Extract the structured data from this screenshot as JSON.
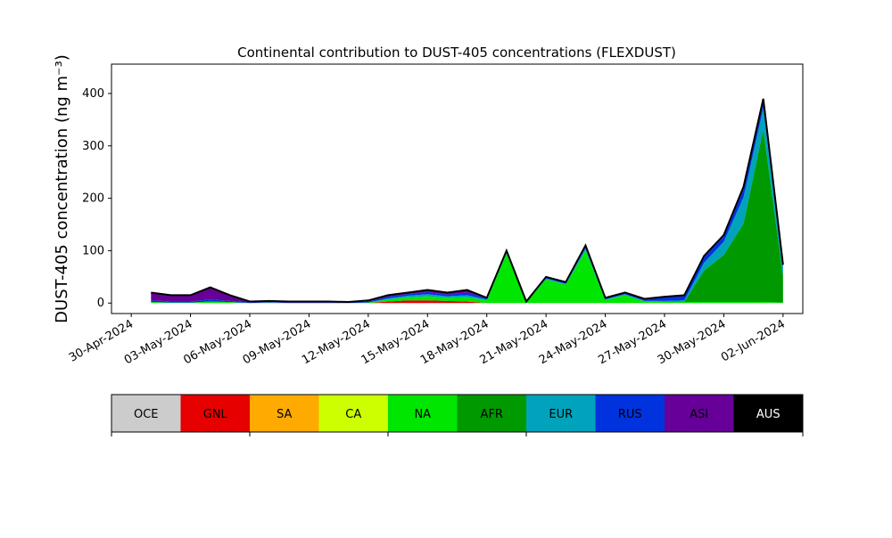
{
  "chart_data": {
    "type": "stacked_area",
    "title": "Continental contribution to DUST-405 concentrations (FLEXDUST)",
    "y_label": "DUST-405 concentration (ng m⁻³)",
    "x": [
      "2024-05-01",
      "2024-05-02",
      "2024-05-03",
      "2024-05-04",
      "2024-05-05",
      "2024-05-06",
      "2024-05-07",
      "2024-05-08",
      "2024-05-09",
      "2024-05-10",
      "2024-05-11",
      "2024-05-12",
      "2024-05-13",
      "2024-05-14",
      "2024-05-15",
      "2024-05-16",
      "2024-05-17",
      "2024-05-18",
      "2024-05-19",
      "2024-05-20",
      "2024-05-21",
      "2024-05-22",
      "2024-05-23",
      "2024-05-24",
      "2024-05-25",
      "2024-05-26",
      "2024-05-27",
      "2024-05-28",
      "2024-05-29",
      "2024-05-30",
      "2024-05-31",
      "2024-06-01",
      "2024-06-02"
    ],
    "xlim": [
      "2024-04-29",
      "2024-06-03"
    ],
    "xticks": [
      {
        "value": "2024-04-30",
        "label": "30-Apr-2024"
      },
      {
        "value": "2024-05-03",
        "label": "03-May-2024"
      },
      {
        "value": "2024-05-06",
        "label": "06-May-2024"
      },
      {
        "value": "2024-05-09",
        "label": "09-May-2024"
      },
      {
        "value": "2024-05-12",
        "label": "12-May-2024"
      },
      {
        "value": "2024-05-15",
        "label": "15-May-2024"
      },
      {
        "value": "2024-05-18",
        "label": "18-May-2024"
      },
      {
        "value": "2024-05-21",
        "label": "21-May-2024"
      },
      {
        "value": "2024-05-24",
        "label": "24-May-2024"
      },
      {
        "value": "2024-05-27",
        "label": "27-May-2024"
      },
      {
        "value": "2024-05-30",
        "label": "30-May-2024"
      },
      {
        "value": "2024-06-02",
        "label": "02-Jun-2024"
      }
    ],
    "ylim": [
      -20,
      456
    ],
    "yticks": [
      0,
      100,
      200,
      300,
      400
    ],
    "series": [
      {
        "name": "OCE",
        "color": "#cccccc",
        "values": [
          0,
          0,
          0,
          0,
          0,
          0,
          0,
          0,
          0,
          0,
          0,
          0,
          0,
          0,
          0,
          0,
          0,
          0,
          0,
          0,
          0,
          0,
          0,
          0,
          0,
          0,
          0,
          0,
          0,
          0,
          0,
          0,
          0
        ]
      },
      {
        "name": "GNL",
        "color": "#e60000",
        "values": [
          0,
          0,
          0,
          0,
          0,
          0,
          0,
          0,
          0,
          0,
          0,
          0,
          3,
          5,
          5,
          4,
          3,
          0,
          0,
          0,
          0,
          0,
          0,
          0,
          0,
          0,
          0,
          0,
          0,
          0,
          0,
          0,
          0
        ]
      },
      {
        "name": "SA",
        "color": "#ffaa00",
        "values": [
          0,
          0,
          0,
          0,
          0,
          0,
          0,
          0,
          0,
          0,
          0,
          0,
          0,
          0,
          0,
          0,
          0,
          0,
          0,
          0,
          0,
          0,
          0,
          0,
          0,
          0,
          0,
          0,
          0,
          0,
          0,
          0,
          0
        ]
      },
      {
        "name": "CA",
        "color": "#ccff00",
        "values": [
          0,
          0,
          0,
          0,
          0,
          0,
          0,
          0,
          0,
          0,
          0,
          0,
          0,
          0,
          0,
          0,
          0,
          0,
          0,
          0,
          0,
          0,
          0,
          0,
          0,
          0,
          0,
          0,
          0,
          0,
          0,
          0,
          0
        ]
      },
      {
        "name": "NA",
        "color": "#00e600",
        "values": [
          2,
          1,
          1,
          3,
          2,
          0,
          1,
          0,
          0,
          0,
          0,
          1,
          4,
          6,
          8,
          6,
          8,
          5,
          95,
          2,
          45,
          35,
          100,
          6,
          15,
          3,
          2,
          2,
          2,
          2,
          2,
          2,
          1
        ]
      },
      {
        "name": "AFR",
        "color": "#009900",
        "values": [
          0,
          0,
          0,
          0,
          0,
          0,
          0,
          0,
          0,
          0,
          0,
          0,
          0,
          0,
          0,
          0,
          0,
          0,
          0,
          0,
          0,
          0,
          0,
          0,
          0,
          0,
          0,
          0,
          60,
          90,
          150,
          330,
          50
        ]
      },
      {
        "name": "EUR",
        "color": "#00a3bb",
        "values": [
          0,
          0,
          0,
          0,
          0,
          0,
          0,
          0,
          0,
          0,
          0,
          0,
          2,
          3,
          4,
          3,
          4,
          2,
          3,
          0,
          2,
          2,
          5,
          1,
          2,
          1,
          2,
          3,
          15,
          25,
          50,
          40,
          15
        ]
      },
      {
        "name": "RUS",
        "color": "#0033dd",
        "values": [
          3,
          2,
          2,
          4,
          2,
          1,
          1,
          1,
          1,
          1,
          1,
          2,
          3,
          3,
          4,
          3,
          5,
          2,
          2,
          1,
          3,
          3,
          5,
          2,
          3,
          2,
          8,
          10,
          10,
          10,
          15,
          10,
          5
        ]
      },
      {
        "name": "ASI",
        "color": "#660099",
        "values": [
          15,
          12,
          12,
          23,
          11,
          2,
          2,
          2,
          2,
          2,
          1,
          2,
          3,
          3,
          4,
          4,
          5,
          1,
          0,
          0,
          0,
          0,
          0,
          1,
          0,
          2,
          0,
          0,
          3,
          3,
          5,
          8,
          2
        ]
      },
      {
        "name": "AUS",
        "color": "#000000",
        "values": [
          0,
          0,
          0,
          0,
          0,
          0,
          0,
          0,
          0,
          0,
          0,
          0,
          0,
          0,
          0,
          0,
          0,
          0,
          0,
          0,
          0,
          0,
          0,
          0,
          0,
          0,
          0,
          0,
          0,
          0,
          0,
          0,
          0
        ]
      }
    ]
  }
}
